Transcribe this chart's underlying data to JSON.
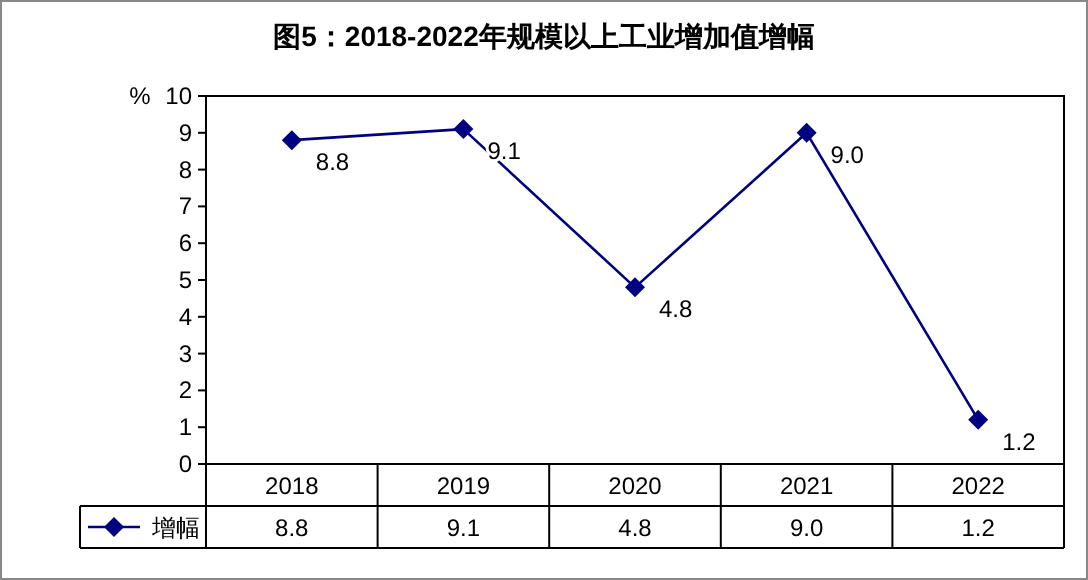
{
  "chart_data": {
    "type": "line",
    "title": "图5：2018-2022年规模以上工业增加值增幅",
    "ylabel": "%",
    "categories": [
      "2018",
      "2019",
      "2020",
      "2021",
      "2022"
    ],
    "series": [
      {
        "name": "增幅",
        "color": "#000080",
        "values": [
          8.8,
          9.1,
          4.8,
          9.0,
          1.2
        ],
        "value_labels": [
          "8.8",
          "9.1",
          "4.8",
          "9.0",
          "1.2"
        ]
      }
    ],
    "ylim": [
      0,
      10
    ],
    "yticks": [
      0,
      1,
      2,
      3,
      4,
      5,
      6,
      7,
      8,
      9,
      10
    ],
    "grid": false,
    "marker": "diamond",
    "line_style": "solid",
    "legend": "bottom"
  }
}
